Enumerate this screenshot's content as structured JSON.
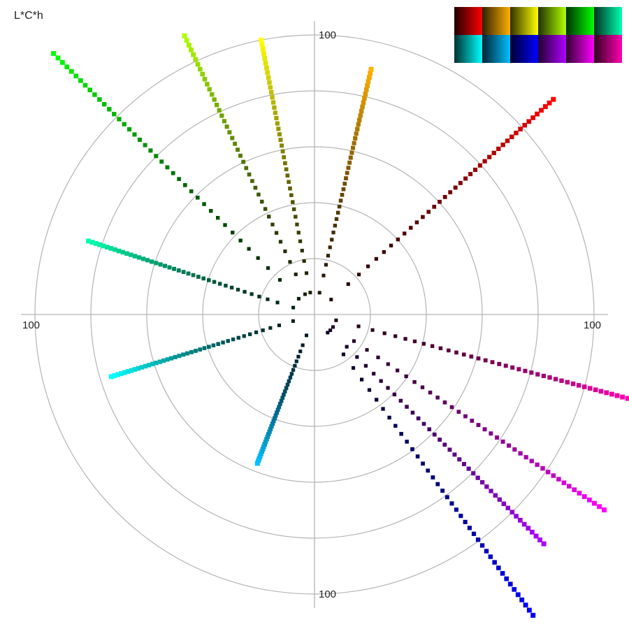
{
  "chart_data": {
    "type": "scatter",
    "title": "L*C*h",
    "coordinate_system": "polar",
    "axis_labels": {
      "top": "100",
      "left": "100",
      "right": "100",
      "bottom": "100"
    },
    "radial_range": [
      0,
      100
    ],
    "ring_step": 20,
    "series": [
      {
        "name": "",
        "hue_deg": 42,
        "max_chroma": 115,
        "color": "#ff0000"
      },
      {
        "name": "",
        "hue_deg": 77,
        "max_chroma": 90,
        "color": "#ffb000"
      },
      {
        "name": "",
        "hue_deg": 101,
        "max_chroma": 100,
        "color": "#ffff00"
      },
      {
        "name": "",
        "hue_deg": 115,
        "max_chroma": 110,
        "color": "#b0ff00"
      },
      {
        "name": "",
        "hue_deg": 135,
        "max_chroma": 132,
        "color": "#00ff00"
      },
      {
        "name": "",
        "hue_deg": 162,
        "max_chroma": 85,
        "color": "#00ffb0"
      },
      {
        "name": "",
        "hue_deg": 197,
        "max_chroma": 76,
        "color": "#00ffff"
      },
      {
        "name": "",
        "hue_deg": 249,
        "max_chroma": 57,
        "color": "#00c0ff"
      },
      {
        "name": "",
        "hue_deg": 306,
        "max_chroma": 133,
        "color": "#0000ff"
      },
      {
        "name": "",
        "hue_deg": 315,
        "max_chroma": 116,
        "color": "#b000ff"
      },
      {
        "name": "",
        "hue_deg": 326,
        "max_chroma": 125,
        "color": "#ff00ff"
      },
      {
        "name": "",
        "hue_deg": 345,
        "max_chroma": 116,
        "color": "#ff00b0"
      }
    ],
    "legend": {
      "placement": "top-right",
      "swatches": [
        {
          "dark": "#200000",
          "bright": "#ff0000"
        },
        {
          "dark": "#302000",
          "bright": "#ffb000"
        },
        {
          "dark": "#303000",
          "bright": "#ffff00"
        },
        {
          "dark": "#203000",
          "bright": "#b0ff00"
        },
        {
          "dark": "#003000",
          "bright": "#00ff00"
        },
        {
          "dark": "#003020",
          "bright": "#00ffb0"
        },
        {
          "dark": "#003030",
          "bright": "#00ffff"
        },
        {
          "dark": "#002030",
          "bright": "#00c0ff"
        },
        {
          "dark": "#000030",
          "bright": "#0000ff"
        },
        {
          "dark": "#200030",
          "bright": "#b000ff"
        },
        {
          "dark": "#300030",
          "bright": "#ff00ff"
        },
        {
          "dark": "#300020",
          "bright": "#ff00b0"
        }
      ]
    }
  }
}
